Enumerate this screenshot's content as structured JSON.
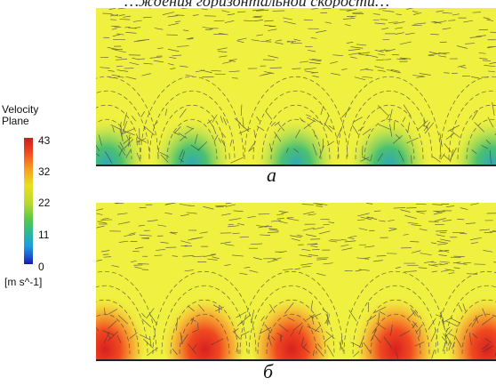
{
  "top_caption": "…ждения горизонтальной скорости…",
  "legend": {
    "title_line1": "Velocity",
    "title_line2": "Plane",
    "ticks": [
      "43",
      "32",
      "22",
      "11",
      "0"
    ],
    "units": "[m s^-1]",
    "colors": [
      "#1a1aa0",
      "#1c9ce0",
      "#55c848",
      "#e8e020",
      "#f7a020",
      "#c81e1e"
    ]
  },
  "panels": [
    {
      "label": "а",
      "background_color": "#f0f040",
      "spot_type": "low-velocity"
    },
    {
      "label": "б",
      "background_color": "#f0f040",
      "spot_type": "high-velocity"
    }
  ]
}
